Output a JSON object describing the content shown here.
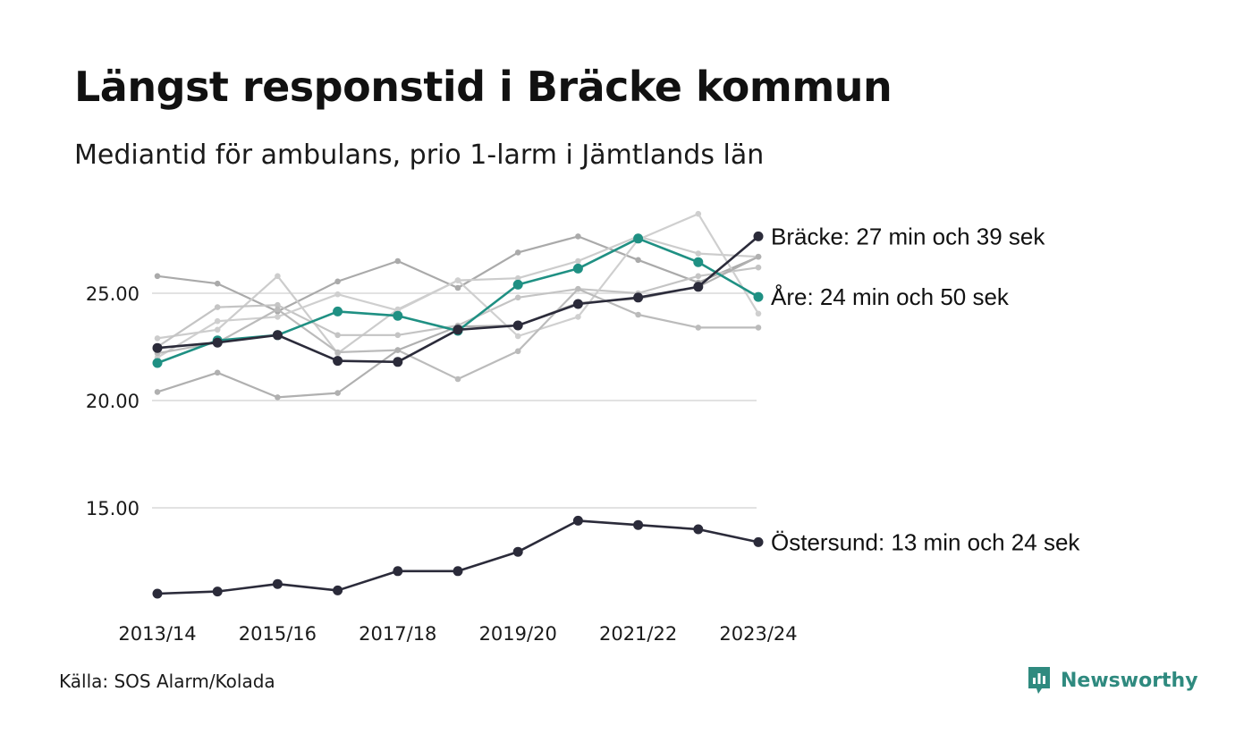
{
  "title": "Längst responstid i Bräcke kommun",
  "subtitle": "Mediantid för ambulans, prio 1-larm i Jämtlands län",
  "source": "Källa: SOS Alarm/Kolada",
  "brand": {
    "name": "Newsworthy",
    "icon": "newsworthy-logo-icon",
    "color": "#2f8a7f"
  },
  "chart_data": {
    "type": "line",
    "x": [
      "2013/14",
      "2014/15",
      "2015/16",
      "2016/17",
      "2017/18",
      "2018/19",
      "2019/20",
      "2020/21",
      "2021/22",
      "2022/23",
      "2023/24"
    ],
    "x_tick_labels": [
      "2013/14",
      "2015/16",
      "2017/18",
      "2019/20",
      "2021/22",
      "2023/24"
    ],
    "y_ticks": [
      "15.00",
      "20.00",
      "25.00"
    ],
    "ylim": [
      11,
      28.8
    ],
    "grid": "horizontal",
    "background_series_color": "#bdbdbd",
    "series": [
      {
        "values": [
          25.8,
          25.45,
          24.15,
          25.55,
          26.5,
          25.25,
          26.9,
          27.65,
          26.55,
          25.5,
          26.7
        ],
        "color": "#aaaaaa",
        "highlight": false
      },
      {
        "values": [
          22.9,
          23.3,
          25.8,
          22.2,
          24.25,
          25.6,
          25.7,
          26.5,
          27.65,
          26.85,
          26.7
        ],
        "color": "#cccccc",
        "highlight": false
      },
      {
        "values": [
          22.5,
          24.35,
          24.45,
          23.05,
          23.05,
          23.5,
          24.8,
          25.2,
          25.0,
          25.8,
          26.2
        ],
        "color": "#c4c4c4",
        "highlight": false
      },
      {
        "values": [
          22.0,
          23.7,
          23.9,
          24.95,
          24.2,
          25.6,
          23.0,
          23.9,
          27.5,
          28.7,
          24.05
        ],
        "color": "#cfcfcf",
        "highlight": false
      },
      {
        "values": [
          22.2,
          22.7,
          24.25,
          22.25,
          22.35,
          21.0,
          22.3,
          25.2,
          24.0,
          23.4,
          23.4
        ],
        "color": "#bbbbbb",
        "highlight": false
      },
      {
        "values": [
          20.4,
          21.3,
          20.15,
          20.35,
          22.35,
          23.45,
          23.5,
          24.55,
          24.75,
          25.3,
          26.7
        ],
        "color": "#b0b0b0",
        "highlight": false
      },
      {
        "name": "Östersund",
        "values": [
          11.0,
          11.1,
          11.45,
          11.15,
          12.05,
          12.05,
          12.95,
          14.4,
          14.2,
          14.0,
          13.4
        ],
        "color": "#2b2b3a",
        "highlight": true
      },
      {
        "name": "Åre",
        "values": [
          21.75,
          22.8,
          23.05,
          24.15,
          23.95,
          23.25,
          25.4,
          26.15,
          27.55,
          26.45,
          24.83
        ],
        "color": "#1f9083",
        "highlight": true
      },
      {
        "name": "Bräcke",
        "values": [
          22.45,
          22.7,
          23.05,
          21.85,
          21.8,
          23.3,
          23.5,
          24.5,
          24.8,
          25.3,
          27.65
        ],
        "color": "#2b2b3a",
        "highlight": true
      }
    ],
    "end_labels": [
      {
        "series": "Bräcke",
        "text": "Bräcke: 27 min och 39 sek"
      },
      {
        "series": "Åre",
        "text": "Åre: 24 min och 50 sek"
      },
      {
        "series": "Östersund",
        "text": "Östersund: 13 min och 24 sek"
      }
    ]
  }
}
